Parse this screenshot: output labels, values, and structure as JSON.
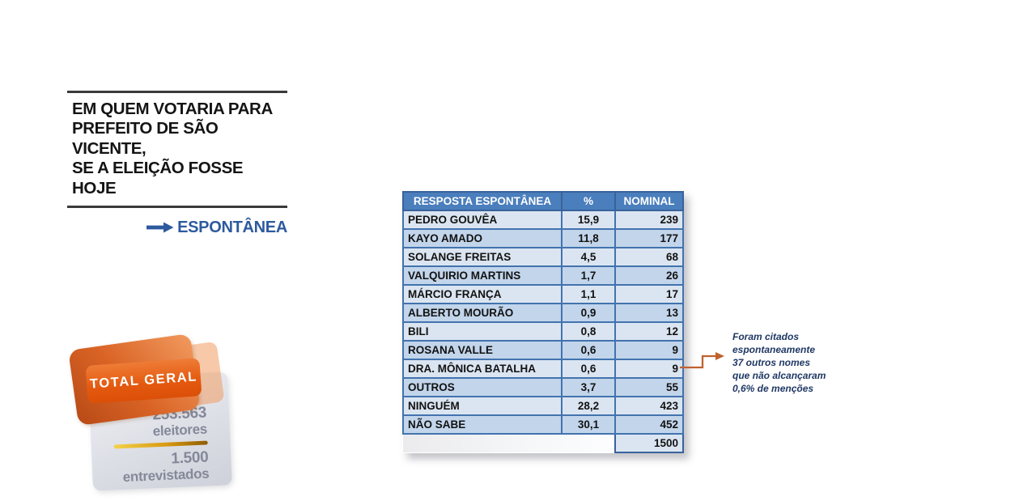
{
  "title": {
    "text": "EM QUEM VOTARIA PARA\nPREFEITO DE SÃO VICENTE,\nSE A ELEIÇÃO FOSSE HOJE",
    "subtitle": "ESPONTÂNEA"
  },
  "table": {
    "columns": [
      "RESPOSTA ESPONTÂNEA",
      "%",
      "NOMINAL"
    ],
    "rows": [
      {
        "name": "PEDRO GOUVÊA",
        "pct": "15,9",
        "nominal": "239"
      },
      {
        "name": "KAYO AMADO",
        "pct": "11,8",
        "nominal": "177"
      },
      {
        "name": "SOLANGE FREITAS",
        "pct": "4,5",
        "nominal": "68"
      },
      {
        "name": "VALQUIRIO MARTINS",
        "pct": "1,7",
        "nominal": "26"
      },
      {
        "name": "MÁRCIO FRANÇA",
        "pct": "1,1",
        "nominal": "17"
      },
      {
        "name": "ALBERTO MOURÃO",
        "pct": "0,9",
        "nominal": "13"
      },
      {
        "name": "BILI",
        "pct": "0,8",
        "nominal": "12"
      },
      {
        "name": "ROSANA VALLE",
        "pct": "0,6",
        "nominal": "9"
      },
      {
        "name": "DRA. MÔNICA BATALHA",
        "pct": "0,6",
        "nominal": "9"
      },
      {
        "name": "OUTROS",
        "pct": "3,7",
        "nominal": "55"
      },
      {
        "name": "NINGUÉM",
        "pct": "28,2",
        "nominal": "423"
      },
      {
        "name": "NÃO SABE",
        "pct": "30,1",
        "nominal": "452"
      }
    ],
    "total_nominal": "1500"
  },
  "annotation": {
    "text": "Foram citados\nespontaneamente\n37 outros nomes\nque não alcançaram\n0,6% de menções"
  },
  "badge": {
    "title": "TOTAL GERAL",
    "electors_value": "253.563",
    "electors_label": "eleitores",
    "interviewed_value": "1.500",
    "interviewed_label": "entrevistados"
  },
  "colors": {
    "accent_blue": "#2d5a9e",
    "table_header_blue": "#4a7ebc",
    "row_light": "#dbe5f1",
    "row_dark": "#c2d5eb",
    "table_border": "#4273ae",
    "connector_orange": "#c0622f",
    "badge_orange": "#e4590f",
    "annotation_navy": "#1f3864",
    "gold": "#d99b12",
    "stat_gray": "#848999"
  }
}
